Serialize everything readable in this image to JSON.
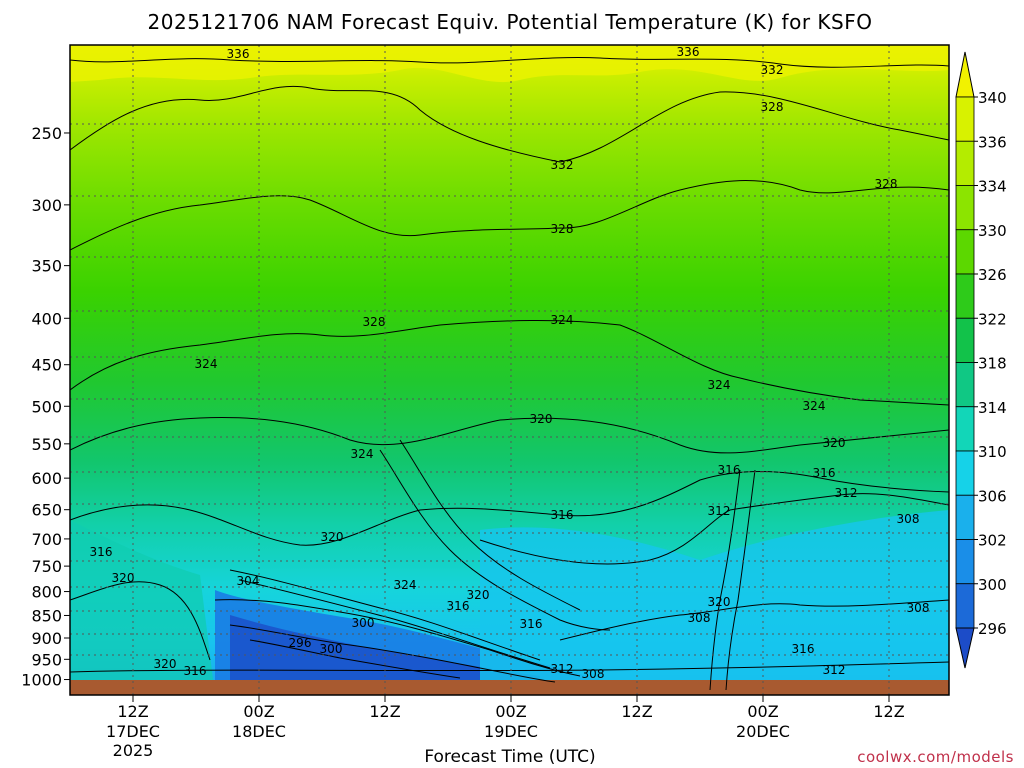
{
  "chart_data": {
    "type": "contour",
    "title": "2025121706 NAM Forecast Equiv. Potential Temperature (K) for KSFO",
    "xlabel": "Forecast Time (UTC)",
    "ylabel": "",
    "credit": "coolwx.com/models",
    "y_ticks": [
      "250",
      "300",
      "350",
      "400",
      "450",
      "500",
      "550",
      "600",
      "650",
      "700",
      "750",
      "800",
      "850",
      "900",
      "950",
      "1000"
    ],
    "x_ticks": [
      {
        "line1": "12Z",
        "line2": "17DEC",
        "line3": "2025"
      },
      {
        "line1": "00Z",
        "line2": "18DEC",
        "line3": ""
      },
      {
        "line1": "12Z",
        "line2": "",
        "line3": ""
      },
      {
        "line1": "00Z",
        "line2": "19DEC",
        "line3": ""
      },
      {
        "line1": "12Z",
        "line2": "",
        "line3": ""
      },
      {
        "line1": "00Z",
        "line2": "20DEC",
        "line3": ""
      },
      {
        "line1": "12Z",
        "line2": "",
        "line3": ""
      }
    ],
    "colorbar_levels": [
      "340",
      "336",
      "334",
      "330",
      "326",
      "322",
      "318",
      "314",
      "310",
      "306",
      "302",
      "300",
      "296"
    ],
    "colorbar_colors": [
      "#f2f200",
      "#d8f200",
      "#b4ec00",
      "#8ce400",
      "#5cd800",
      "#2ecb1a",
      "#12c24a",
      "#10c884",
      "#12d6b8",
      "#16d2e8",
      "#1ab0ec",
      "#1a8ee8",
      "#1c6ad8",
      "#1c4cc8"
    ],
    "contour_labels": [
      {
        "text": "336",
        "x": 238,
        "y": 54
      },
      {
        "text": "336",
        "x": 688,
        "y": 52
      },
      {
        "text": "332",
        "x": 772,
        "y": 70
      },
      {
        "text": "328",
        "x": 772,
        "y": 107
      },
      {
        "text": "332",
        "x": 562,
        "y": 165
      },
      {
        "text": "328",
        "x": 886,
        "y": 184
      },
      {
        "text": "328",
        "x": 562,
        "y": 229
      },
      {
        "text": "328",
        "x": 374,
        "y": 322
      },
      {
        "text": "324",
        "x": 562,
        "y": 320
      },
      {
        "text": "324",
        "x": 206,
        "y": 364
      },
      {
        "text": "324",
        "x": 719,
        "y": 385
      },
      {
        "text": "324",
        "x": 814,
        "y": 406
      },
      {
        "text": "320",
        "x": 541,
        "y": 419
      },
      {
        "text": "320",
        "x": 834,
        "y": 443
      },
      {
        "text": "324",
        "x": 362,
        "y": 454
      },
      {
        "text": "316",
        "x": 729,
        "y": 470
      },
      {
        "text": "316",
        "x": 824,
        "y": 473
      },
      {
        "text": "312",
        "x": 846,
        "y": 493
      },
      {
        "text": "312",
        "x": 719,
        "y": 511
      },
      {
        "text": "316",
        "x": 562,
        "y": 515
      },
      {
        "text": "308",
        "x": 908,
        "y": 519
      },
      {
        "text": "320",
        "x": 332,
        "y": 537
      },
      {
        "text": "316",
        "x": 101,
        "y": 552
      },
      {
        "text": "320",
        "x": 123,
        "y": 578
      },
      {
        "text": "304",
        "x": 248,
        "y": 581
      },
      {
        "text": "324",
        "x": 405,
        "y": 585
      },
      {
        "text": "320",
        "x": 478,
        "y": 595
      },
      {
        "text": "320",
        "x": 719,
        "y": 602
      },
      {
        "text": "316",
        "x": 458,
        "y": 606
      },
      {
        "text": "308",
        "x": 918,
        "y": 608
      },
      {
        "text": "300",
        "x": 363,
        "y": 623
      },
      {
        "text": "316",
        "x": 531,
        "y": 624
      },
      {
        "text": "308",
        "x": 699,
        "y": 618
      },
      {
        "text": "296",
        "x": 300,
        "y": 643
      },
      {
        "text": "300",
        "x": 331,
        "y": 649
      },
      {
        "text": "316",
        "x": 803,
        "y": 649
      },
      {
        "text": "320",
        "x": 165,
        "y": 664
      },
      {
        "text": "316",
        "x": 195,
        "y": 671
      },
      {
        "text": "312",
        "x": 562,
        "y": 669
      },
      {
        "text": "312",
        "x": 834,
        "y": 670
      },
      {
        "text": "308",
        "x": 593,
        "y": 674
      }
    ]
  }
}
